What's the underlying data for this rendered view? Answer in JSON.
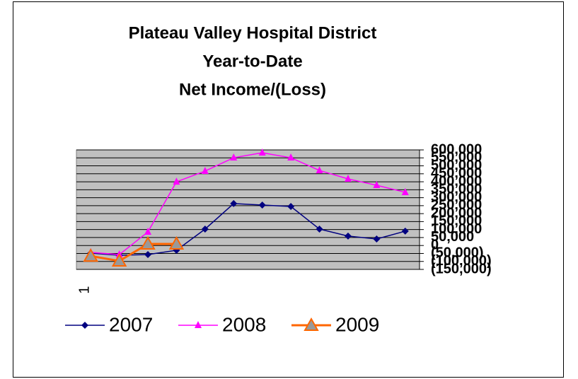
{
  "chart_data": {
    "type": "line",
    "title": [
      "Plateau Valley Hospital District",
      "Year-to-Date",
      "Net Income/(Loss)"
    ],
    "categories": [
      "1",
      null,
      null,
      null,
      null,
      null,
      null,
      null,
      null,
      null,
      null,
      null
    ],
    "series": [
      {
        "name": "2007",
        "color": "#000080",
        "marker": "diamond",
        "values": [
          -48000,
          -61000,
          -57000,
          -30000,
          103000,
          263000,
          254000,
          245000,
          103000,
          59000,
          41000,
          90000
        ]
      },
      {
        "name": "2008",
        "color": "#ff00ff",
        "marker": "triangle",
        "values": [
          -43000,
          -57000,
          85000,
          400000,
          467000,
          551000,
          582000,
          551000,
          471000,
          418000,
          378000,
          334000
        ]
      },
      {
        "name": "2009",
        "color": "#ff6600",
        "marker": "triangle-big",
        "values": [
          -66000,
          -97000,
          10000,
          10000,
          null,
          null,
          null,
          null,
          null,
          null,
          null,
          null
        ]
      }
    ],
    "ylim": [
      -150000,
      600000
    ],
    "yticks": [
      {
        "value": -150000,
        "label": "(150,000)"
      },
      {
        "value": -100000,
        "label": "(100,000)"
      },
      {
        "value": -50000,
        "label": "(50,000)"
      },
      0,
      {
        "value": 50000,
        "label": "50,000"
      },
      {
        "value": 100000,
        "label": "100,000"
      },
      {
        "value": 150000,
        "label": "150,000"
      },
      {
        "value": 200000,
        "label": "200,000"
      },
      {
        "value": 250000,
        "label": "250,000"
      },
      {
        "value": 300000,
        "label": "300,000"
      },
      {
        "value": 350000,
        "label": "350,000"
      },
      {
        "value": 400000,
        "label": "400,000"
      },
      {
        "value": 450000,
        "label": "450,000"
      },
      {
        "value": 500000,
        "label": "500,000"
      },
      {
        "value": 550000,
        "label": "550,000"
      },
      {
        "value": 600000,
        "label": "600,000"
      }
    ],
    "grid": true
  }
}
